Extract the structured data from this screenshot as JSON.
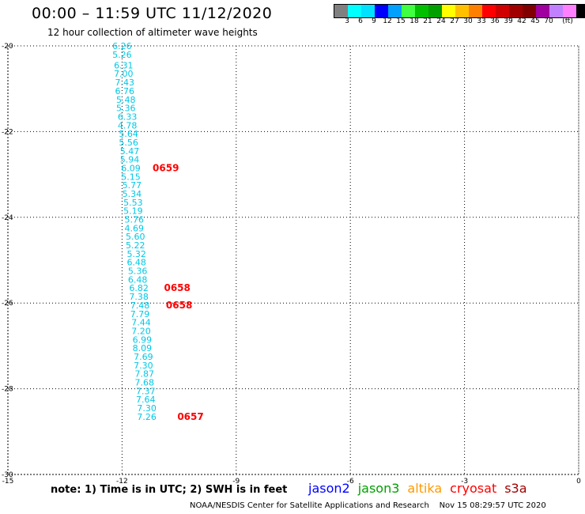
{
  "header": {
    "title": "00:00 – 11:59 UTC 11/12/2020",
    "subtitle": "12 hour collection of altimeter wave heights"
  },
  "legend": {
    "colors": [
      "#808080",
      "#00ffff",
      "#00e0ff",
      "#0000ff",
      "#00a0ff",
      "#40ff40",
      "#00c000",
      "#00a000",
      "#ffff00",
      "#ffc000",
      "#ff8000",
      "#ff0000",
      "#d00000",
      "#a00000",
      "#800000",
      "#a000a0",
      "#c080ff",
      "#ff80ff",
      "#000000"
    ],
    "labels": [
      "3",
      "6",
      "9",
      "12",
      "15",
      "18",
      "21",
      "24",
      "27",
      "30",
      "33",
      "36",
      "39",
      "42",
      "45",
      "70"
    ],
    "unit": "(ft)"
  },
  "map": {
    "x_range": [
      -15,
      0
    ],
    "y_range": [
      -30,
      -20
    ],
    "x_ticks": [
      "-15",
      "-12",
      "-9",
      "-6",
      "-3",
      "0"
    ],
    "y_ticks": [
      "-20",
      "-22",
      "-24",
      "-26",
      "-28",
      "-30"
    ]
  },
  "track": {
    "color": "#00c8e6",
    "points": [
      {
        "lon": -12.0,
        "lat": -20.0,
        "v": "6.26"
      },
      {
        "lon": -12.0,
        "lat": -20.2,
        "v": "5.26"
      },
      {
        "lon": -11.96,
        "lat": -20.45,
        "v": "6.31"
      },
      {
        "lon": -11.96,
        "lat": -20.65,
        "v": "7.00"
      },
      {
        "lon": -11.93,
        "lat": -20.85,
        "v": "7.43"
      },
      {
        "lon": -11.93,
        "lat": -21.05,
        "v": "6.76"
      },
      {
        "lon": -11.9,
        "lat": -21.25,
        "v": "5.48"
      },
      {
        "lon": -11.9,
        "lat": -21.45,
        "v": "5.36"
      },
      {
        "lon": -11.86,
        "lat": -21.65,
        "v": "6.33"
      },
      {
        "lon": -11.86,
        "lat": -21.85,
        "v": "4.78"
      },
      {
        "lon": -11.83,
        "lat": -22.05,
        "v": "5.64"
      },
      {
        "lon": -11.83,
        "lat": -22.25,
        "v": "5.56"
      },
      {
        "lon": -11.8,
        "lat": -22.45,
        "v": "5.47"
      },
      {
        "lon": -11.8,
        "lat": -22.65,
        "v": "5.94"
      },
      {
        "lon": -11.77,
        "lat": -22.85,
        "v": "6.09"
      },
      {
        "lon": -11.77,
        "lat": -23.05,
        "v": "5.15"
      },
      {
        "lon": -11.74,
        "lat": -23.25,
        "v": "5.77"
      },
      {
        "lon": -11.74,
        "lat": -23.45,
        "v": "5.34"
      },
      {
        "lon": -11.71,
        "lat": -23.65,
        "v": "5.53"
      },
      {
        "lon": -11.71,
        "lat": -23.85,
        "v": "5.19"
      },
      {
        "lon": -11.68,
        "lat": -24.05,
        "v": "5.76"
      },
      {
        "lon": -11.68,
        "lat": -24.25,
        "v": "4.69"
      },
      {
        "lon": -11.65,
        "lat": -24.45,
        "v": "5.60"
      },
      {
        "lon": -11.65,
        "lat": -24.65,
        "v": "5.22"
      },
      {
        "lon": -11.62,
        "lat": -24.85,
        "v": "5.32"
      },
      {
        "lon": -11.62,
        "lat": -25.05,
        "v": "6.48"
      },
      {
        "lon": -11.59,
        "lat": -25.25,
        "v": "5.36"
      },
      {
        "lon": -11.59,
        "lat": -25.45,
        "v": "6.48"
      },
      {
        "lon": -11.56,
        "lat": -25.65,
        "v": "6.82"
      },
      {
        "lon": -11.56,
        "lat": -25.85,
        "v": "7.38"
      },
      {
        "lon": -11.53,
        "lat": -26.05,
        "v": "7.48"
      },
      {
        "lon": -11.53,
        "lat": -26.25,
        "v": "7.79"
      },
      {
        "lon": -11.5,
        "lat": -26.45,
        "v": "7.44"
      },
      {
        "lon": -11.5,
        "lat": -26.65,
        "v": "7.20"
      },
      {
        "lon": -11.47,
        "lat": -26.85,
        "v": "6.99"
      },
      {
        "lon": -11.47,
        "lat": -27.05,
        "v": "8.09"
      },
      {
        "lon": -11.44,
        "lat": -27.25,
        "v": "7.69"
      },
      {
        "lon": -11.44,
        "lat": -27.45,
        "v": "7.30"
      },
      {
        "lon": -11.41,
        "lat": -27.65,
        "v": "7.87"
      },
      {
        "lon": -11.41,
        "lat": -27.85,
        "v": "7.68"
      },
      {
        "lon": -11.38,
        "lat": -28.05,
        "v": "7.37"
      },
      {
        "lon": -11.38,
        "lat": -28.25,
        "v": "7.64"
      },
      {
        "lon": -11.35,
        "lat": -28.45,
        "v": "7.30"
      },
      {
        "lon": -11.35,
        "lat": -28.65,
        "v": "7.26"
      }
    ],
    "pass_times": [
      {
        "lon": -10.85,
        "lat": -22.85,
        "t": "0659"
      },
      {
        "lon": -10.55,
        "lat": -25.65,
        "t": "0658"
      },
      {
        "lon": -10.5,
        "lat": -26.05,
        "t": "0658"
      },
      {
        "lon": -10.2,
        "lat": -28.65,
        "t": "0657"
      }
    ],
    "pass_color": "#ff0000"
  },
  "footer": {
    "note": "note: 1) Time is in UTC; 2) SWH is in feet",
    "satellites": [
      {
        "name": "jason2",
        "color": "#0000ff"
      },
      {
        "name": "jason3",
        "color": "#00a000"
      },
      {
        "name": "altika",
        "color": "#ff9900"
      },
      {
        "name": "cryosat",
        "color": "#ff0000"
      },
      {
        "name": "s3a",
        "color": "#a00000"
      }
    ],
    "credit": "NOAA/NESDIS Center for Satellite Applications and Research    Nov 15 08:29:57 UTC 2020"
  }
}
